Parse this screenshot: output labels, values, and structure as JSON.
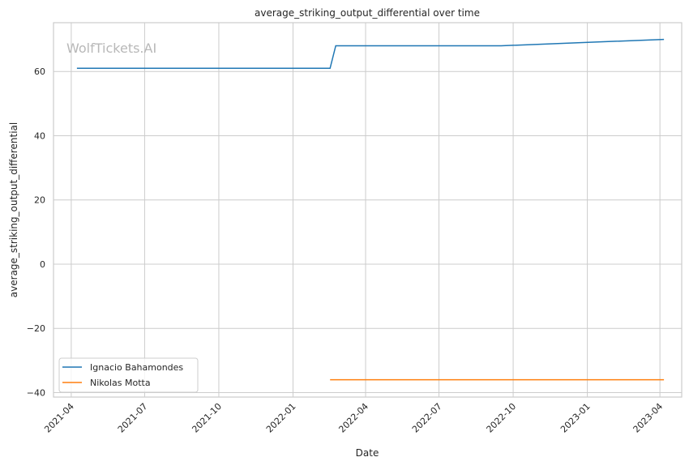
{
  "chart_data": {
    "type": "line",
    "title": "average_striking_output_differential over time",
    "xlabel": "Date",
    "ylabel": "average_striking_output_differential",
    "watermark": "WolfTickets.AI",
    "xlim": [
      "2021-03-10",
      "2023-04-28"
    ],
    "ylim": [
      -41.4,
      75.2
    ],
    "x_ticks": [
      "2021-04",
      "2021-07",
      "2021-10",
      "2022-01",
      "2022-04",
      "2022-07",
      "2022-10",
      "2023-01",
      "2023-04"
    ],
    "y_ticks": [
      -40,
      -20,
      0,
      20,
      40,
      60
    ],
    "y_tick_labels": [
      "−40",
      "−20",
      "0",
      "20",
      "40",
      "60"
    ],
    "grid": true,
    "legend_position": "lower-left",
    "series": [
      {
        "name": "Ignacio Bahamondes",
        "color": "#1f77b4",
        "x": [
          "2021-04-08",
          "2022-02-16",
          "2022-02-23",
          "2022-09-16",
          "2023-04-06"
        ],
        "y": [
          61,
          61,
          68,
          68,
          70
        ]
      },
      {
        "name": "Nikolas Motta",
        "color": "#ff7f0e",
        "x": [
          "2022-02-16",
          "2023-04-06"
        ],
        "y": [
          -36,
          -36
        ]
      }
    ]
  }
}
